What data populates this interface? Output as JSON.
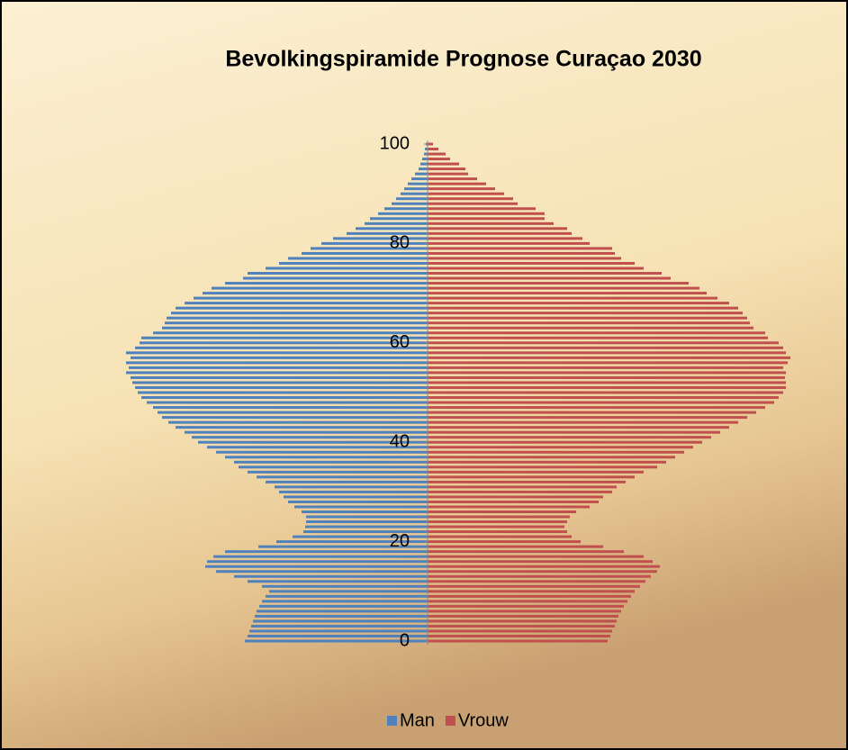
{
  "chart_data": {
    "type": "pyramid",
    "title": "Bevolkingspiramide Prognose Curaçao 2030",
    "categories": [
      0,
      null,
      null,
      null,
      null,
      null,
      null,
      null,
      null,
      null,
      null,
      null,
      null,
      null,
      null,
      null,
      null,
      null,
      null,
      null,
      20,
      null,
      null,
      null,
      null,
      null,
      null,
      null,
      null,
      null,
      null,
      null,
      null,
      null,
      null,
      null,
      null,
      null,
      null,
      null,
      40,
      null,
      null,
      null,
      null,
      null,
      null,
      null,
      null,
      null,
      null,
      null,
      null,
      null,
      null,
      null,
      null,
      null,
      null,
      null,
      60,
      null,
      null,
      null,
      null,
      null,
      null,
      null,
      null,
      null,
      null,
      null,
      null,
      null,
      null,
      null,
      null,
      null,
      null,
      null,
      80,
      null,
      null,
      null,
      null,
      null,
      null,
      null,
      null,
      null,
      null,
      null,
      null,
      null,
      null,
      null,
      null,
      null,
      null,
      null,
      100
    ],
    "series": [
      {
        "name": "Man",
        "color": "#4f81bd",
        "values": [
          203,
          200,
          198,
          196,
          194,
          192,
          190,
          187,
          184,
          180,
          176,
          184,
          200,
          215,
          235,
          247,
          245,
          238,
          225,
          188,
          168,
          150,
          138,
          136,
          135,
          135,
          140,
          148,
          155,
          160,
          165,
          170,
          180,
          190,
          200,
          210,
          215,
          225,
          235,
          245,
          255,
          262,
          270,
          280,
          288,
          295,
          300,
          305,
          312,
          318,
          322,
          325,
          328,
          330,
          335,
          332,
          335,
          330,
          335,
          325,
          320,
          318,
          305,
          295,
          292,
          290,
          285,
          280,
          270,
          260,
          250,
          240,
          225,
          205,
          200,
          180,
          165,
          155,
          140,
          130,
          118,
          105,
          90,
          80,
          70,
          64,
          55,
          48,
          40,
          35,
          30,
          26,
          22,
          18,
          14,
          10,
          8,
          6,
          4,
          3,
          2
        ]
      },
      {
        "name": "Vrouw",
        "color": "#c0504d",
        "values": [
          200,
          203,
          205,
          208,
          210,
          212,
          215,
          218,
          222,
          226,
          230,
          236,
          242,
          248,
          255,
          258,
          250,
          240,
          218,
          195,
          170,
          160,
          155,
          152,
          155,
          158,
          165,
          180,
          190,
          195,
          205,
          210,
          220,
          230,
          240,
          255,
          265,
          275,
          285,
          295,
          305,
          315,
          325,
          335,
          345,
          355,
          365,
          375,
          385,
          390,
          395,
          398,
          398,
          397,
          398,
          395,
          400,
          403,
          398,
          395,
          390,
          378,
          375,
          362,
          358,
          355,
          350,
          345,
          335,
          322,
          310,
          302,
          290,
          270,
          260,
          240,
          230,
          215,
          208,
          205,
          180,
          172,
          160,
          155,
          140,
          130,
          130,
          120,
          100,
          95,
          85,
          75,
          65,
          55,
          45,
          42,
          35,
          25,
          20,
          12,
          6
        ]
      }
    ],
    "xlim": [
      0,
      420
    ],
    "legend": "bottom"
  }
}
